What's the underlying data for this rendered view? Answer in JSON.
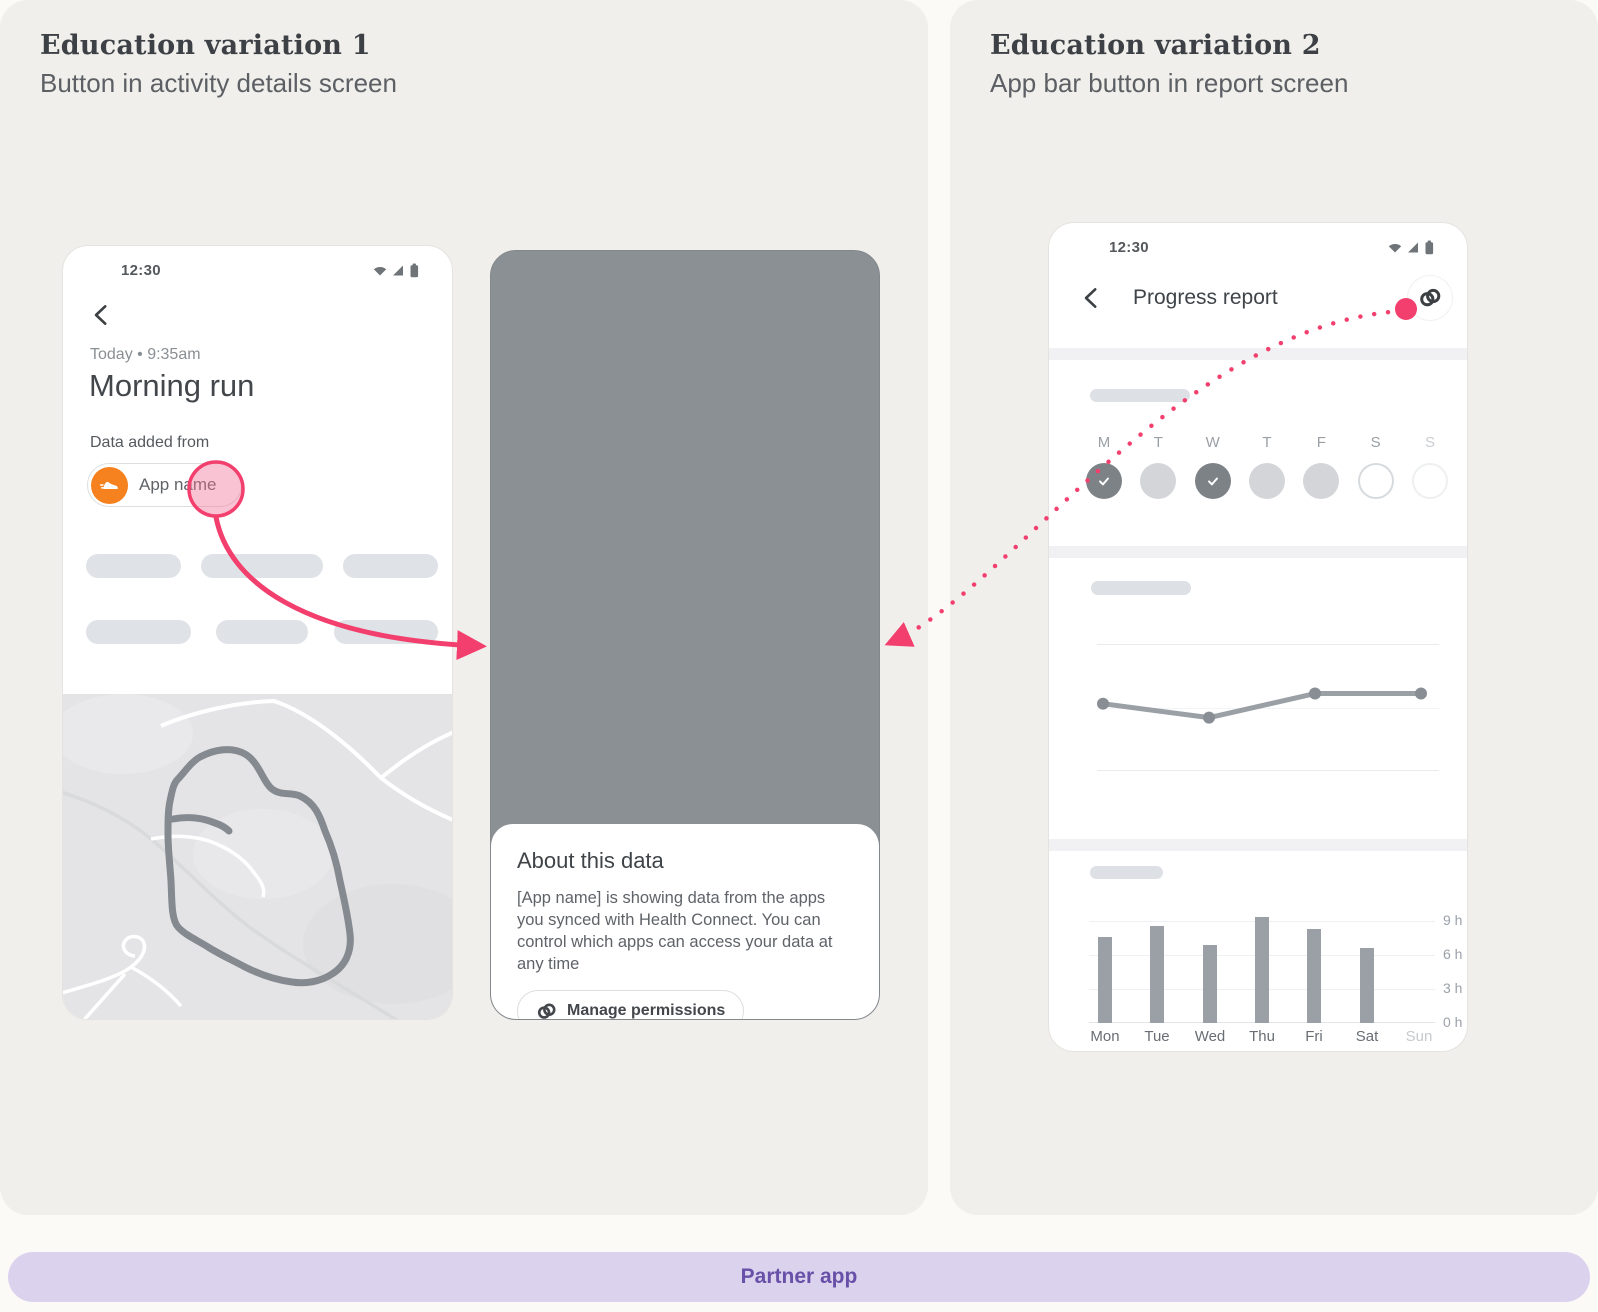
{
  "accent": {
    "pink": "#F23F6D",
    "purple_text": "#6850A8",
    "purple_bg": "#DBD3EE",
    "orange": "#F5821F",
    "bar_gray": "#9AA0A6"
  },
  "panel_left": {
    "title": "Education variation 1",
    "subtitle": "Button in activity details screen"
  },
  "panel_right": {
    "title": "Education variation 2",
    "subtitle": "App bar button in report screen"
  },
  "phone1": {
    "status_time": "12:30",
    "date_line": "Today • 9:35am",
    "title": "Morning run",
    "section_label": "Data added from",
    "chip_label": "App name"
  },
  "phone2_sheet": {
    "title": "About this data",
    "body": "[App name] is showing data from the apps you synced with Health Connect. You can control which apps can access your data at any time",
    "button_label": "Manage permissions"
  },
  "phone3": {
    "status_time": "12:30",
    "app_bar_title": "Progress report",
    "week_days": [
      "M",
      "T",
      "W",
      "T",
      "F",
      "S",
      "S"
    ],
    "week_states": [
      "checked",
      "filled",
      "checked",
      "filled",
      "filled",
      "outlined",
      "outlined-faint"
    ]
  },
  "partner_bar_label": "Partner app",
  "chart_data": [
    {
      "type": "line",
      "x": [
        "1",
        "2",
        "3",
        "4"
      ],
      "values": [
        5.3,
        4.2,
        6.1,
        6.1
      ],
      "ylim": [
        0,
        10
      ],
      "grid": "horizontal",
      "legend": "none",
      "title": ""
    },
    {
      "type": "bar",
      "categories": [
        "Mon",
        "Tue",
        "Wed",
        "Thu",
        "Fri",
        "Sat",
        "Sun"
      ],
      "values": [
        7.6,
        8.6,
        6.9,
        9.4,
        8.3,
        6.6,
        0
      ],
      "ylim": [
        0,
        10
      ],
      "yticks": [
        9,
        6,
        3,
        0
      ],
      "ytick_labels": [
        "9 h",
        "6 h",
        "3 h",
        "0 h"
      ],
      "title": ""
    }
  ]
}
